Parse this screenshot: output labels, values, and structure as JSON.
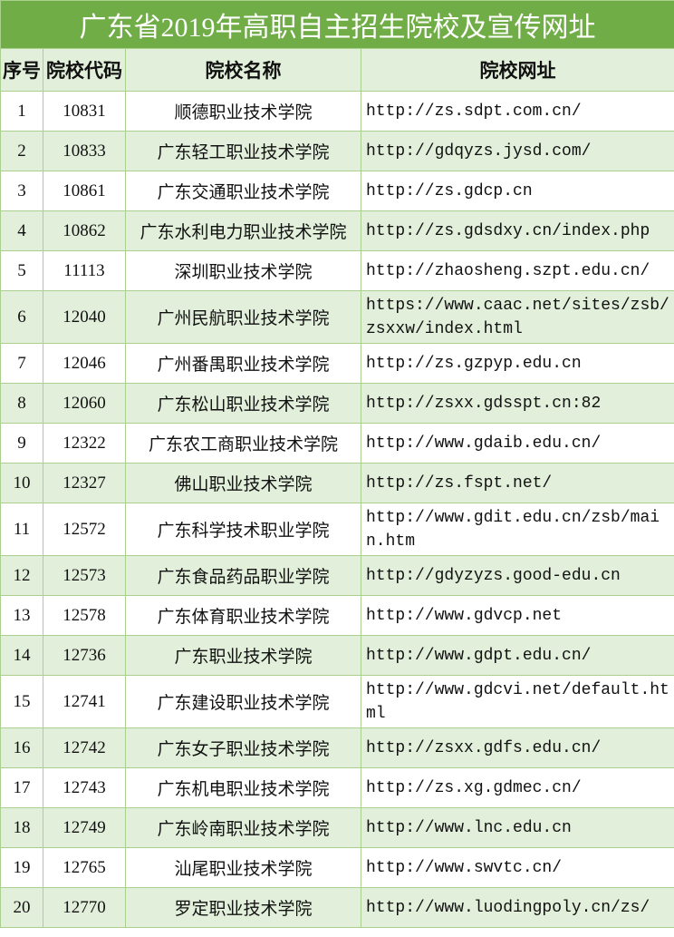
{
  "title": "广东省2019年高职自主招生院校及宣传网址",
  "colors": {
    "title_bg": "#70ad47",
    "stripe": "#e2efda",
    "border": "#a9d08e"
  },
  "columns": [
    "序号",
    "院校代码",
    "院校名称",
    "院校网址"
  ],
  "rows": [
    {
      "no": "1",
      "code": "10831",
      "name": "顺德职业技术学院",
      "url": "http://zs.sdpt.com.cn/"
    },
    {
      "no": "2",
      "code": "10833",
      "name": "广东轻工职业技术学院",
      "url": "http://gdqyzs.jysd.com/"
    },
    {
      "no": "3",
      "code": "10861",
      "name": "广东交通职业技术学院",
      "url": "http://zs.gdcp.cn"
    },
    {
      "no": "4",
      "code": "10862",
      "name": "广东水利电力职业技术学院",
      "url": "http://zs.gdsdxy.cn/index.php"
    },
    {
      "no": "5",
      "code": "11113",
      "name": "深圳职业技术学院",
      "url": "http://zhaosheng.szpt.edu.cn/"
    },
    {
      "no": "6",
      "code": "12040",
      "name": "广州民航职业技术学院",
      "url": "https://www.caac.net/sites/zsb/zsxxw/index.html"
    },
    {
      "no": "7",
      "code": "12046",
      "name": "广州番禺职业技术学院",
      "url": "http://zs.gzpyp.edu.cn"
    },
    {
      "no": "8",
      "code": "12060",
      "name": "广东松山职业技术学院",
      "url": "http://zsxx.gdsspt.cn:82"
    },
    {
      "no": "9",
      "code": "12322",
      "name": "广东农工商职业技术学院",
      "url": "http://www.gdaib.edu.cn/"
    },
    {
      "no": "10",
      "code": "12327",
      "name": "佛山职业技术学院",
      "url": "http://zs.fspt.net/"
    },
    {
      "no": "11",
      "code": "12572",
      "name": "广东科学技术职业学院",
      "url": "http://www.gdit.edu.cn/zsb/main.htm"
    },
    {
      "no": "12",
      "code": "12573",
      "name": "广东食品药品职业学院",
      "url": "http://gdyzyzs.good-edu.cn"
    },
    {
      "no": "13",
      "code": "12578",
      "name": "广东体育职业技术学院",
      "url": "http://www.gdvcp.net"
    },
    {
      "no": "14",
      "code": "12736",
      "name": "广东职业技术学院",
      "url": "http://www.gdpt.edu.cn/"
    },
    {
      "no": "15",
      "code": "12741",
      "name": "广东建设职业技术学院",
      "url": "http://www.gdcvi.net/default.html"
    },
    {
      "no": "16",
      "code": "12742",
      "name": "广东女子职业技术学院",
      "url": "http://zsxx.gdfs.edu.cn/"
    },
    {
      "no": "17",
      "code": "12743",
      "name": "广东机电职业技术学院",
      "url": "http://zs.xg.gdmec.cn/"
    },
    {
      "no": "18",
      "code": "12749",
      "name": "广东岭南职业技术学院",
      "url": "http://www.lnc.edu.cn"
    },
    {
      "no": "19",
      "code": "12765",
      "name": "汕尾职业技术学院",
      "url": "http://www.swvtc.cn/"
    },
    {
      "no": "20",
      "code": "12770",
      "name": "罗定职业技术学院",
      "url": "http://www.luodingpoly.cn/zs/"
    }
  ]
}
